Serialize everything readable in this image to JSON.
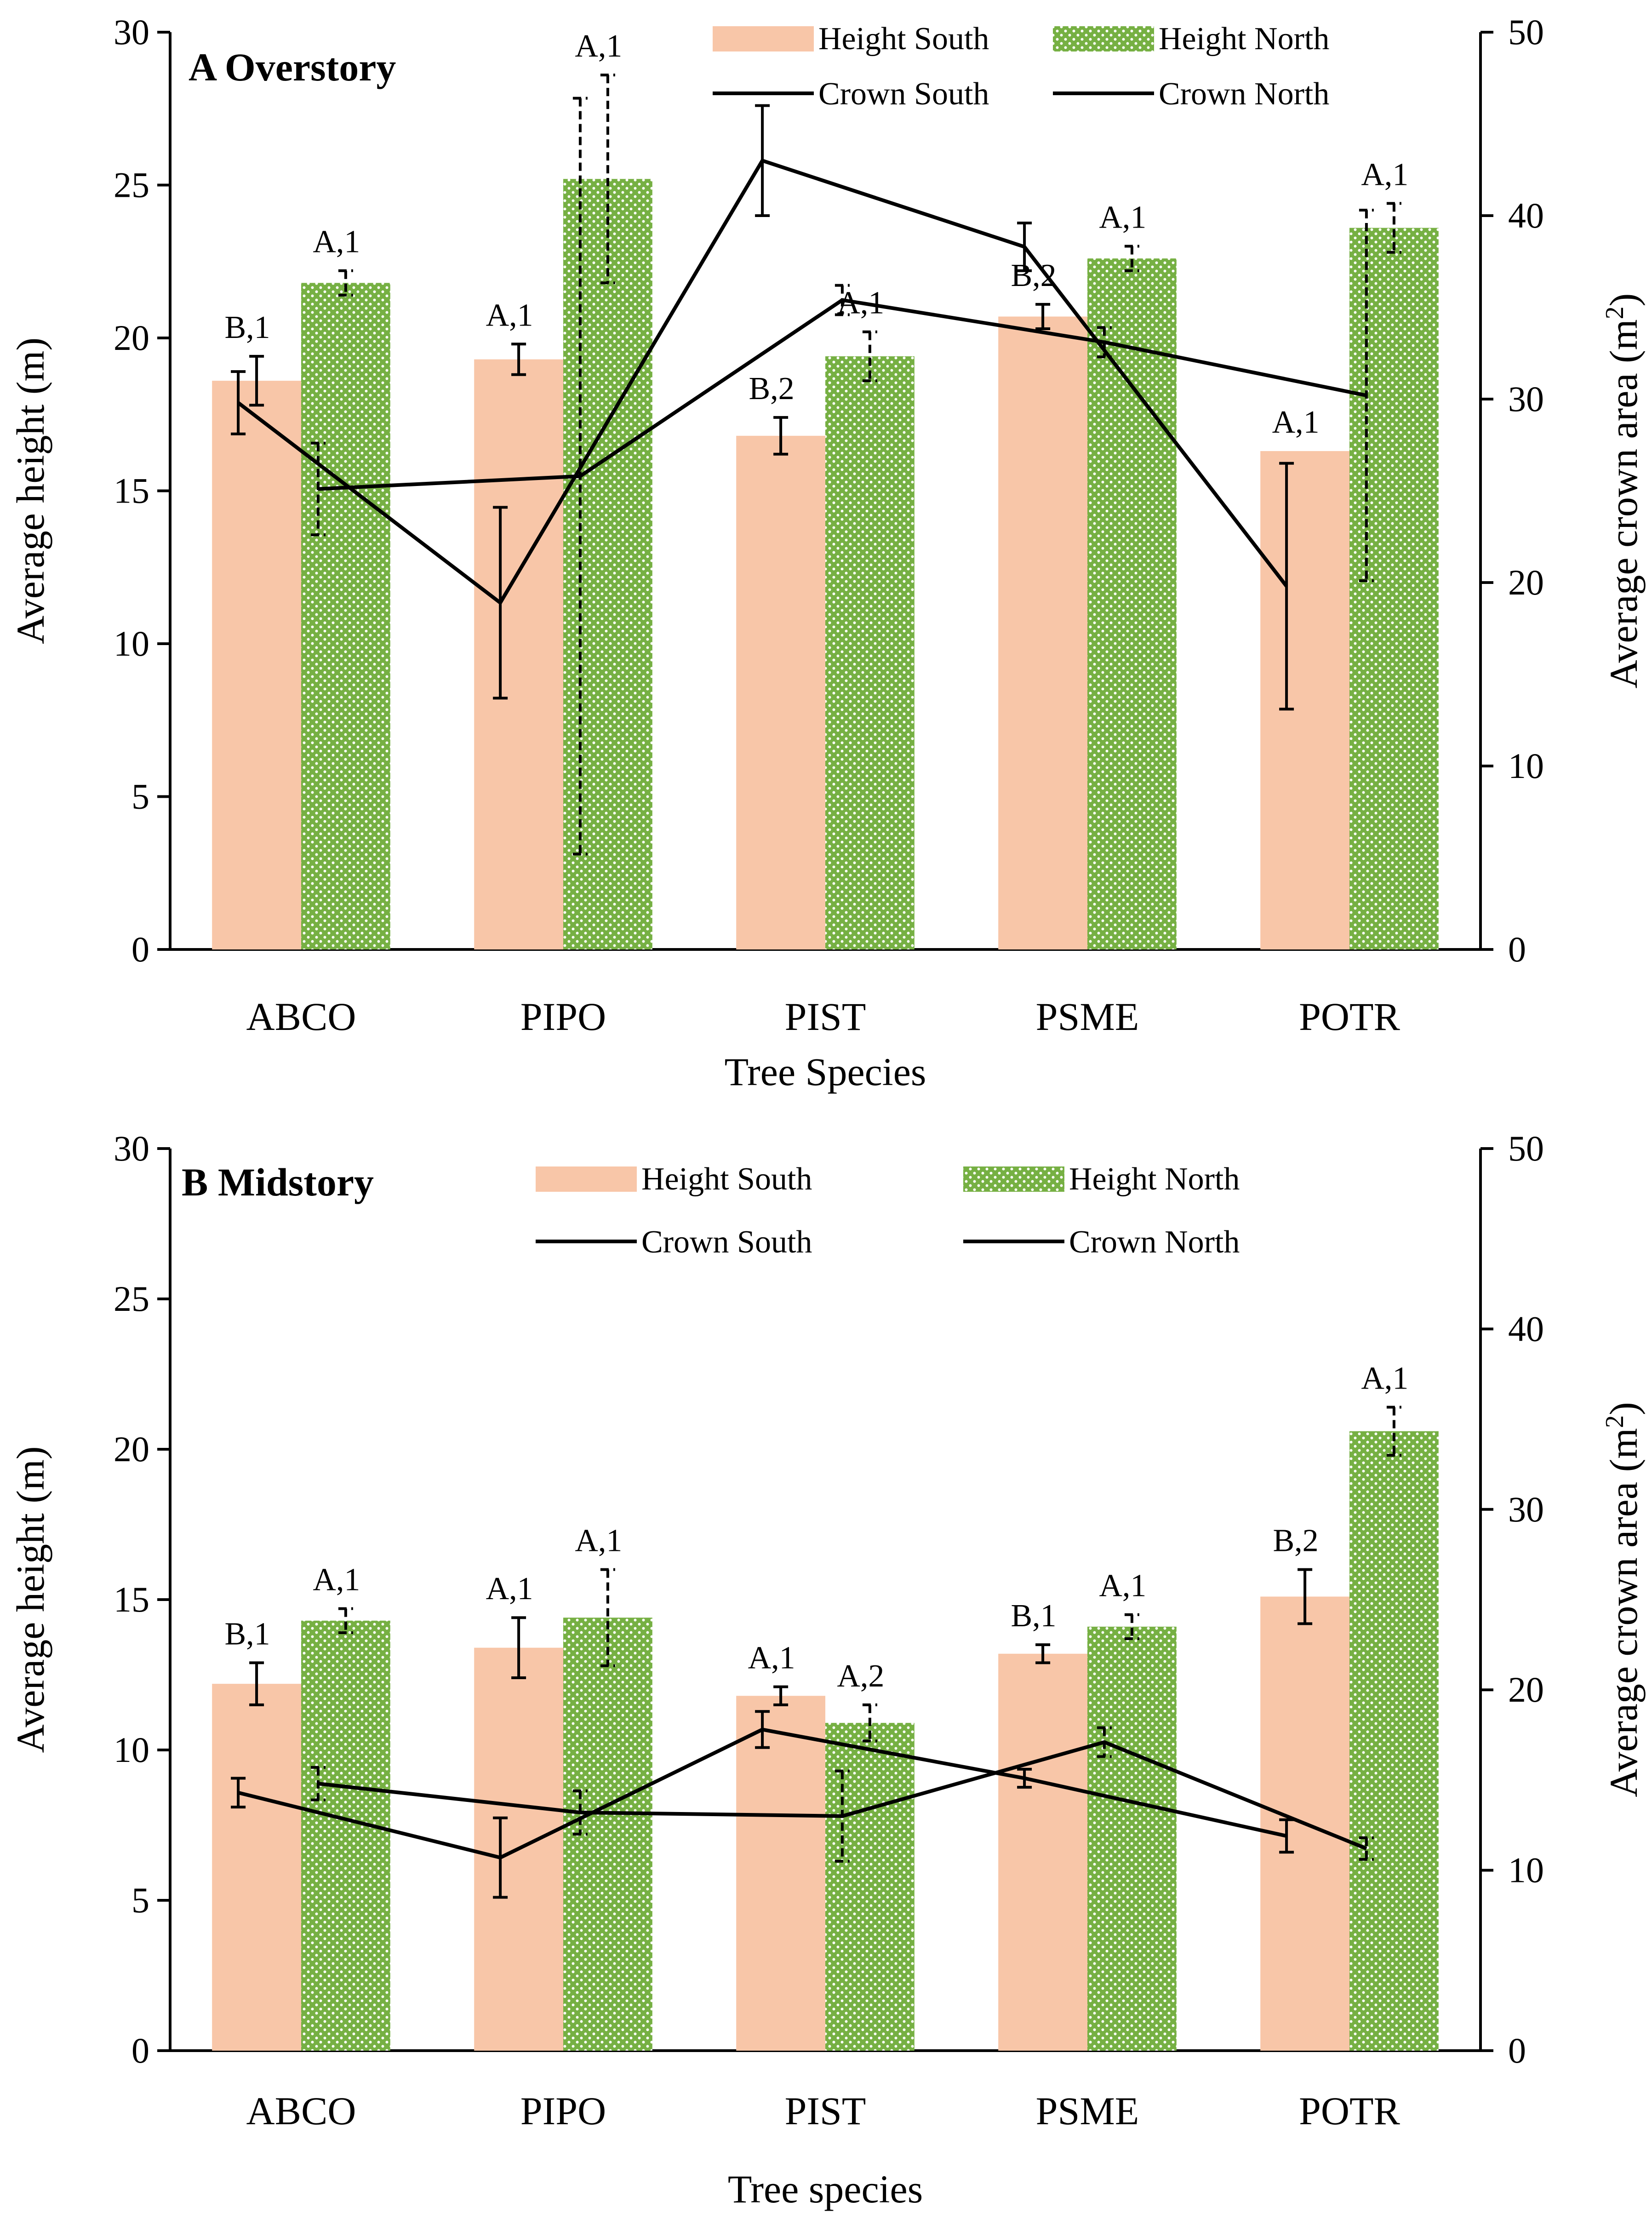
{
  "chart_data": [
    {
      "type": "bar",
      "title": "A Overstory",
      "xlabel": "Tree Species",
      "ylabel": "Average height (m)",
      "y2label": "Average crown area (m",
      "y2label_sup": "2",
      "y2label_close": ")",
      "ylim": [
        0,
        30
      ],
      "y2lim": [
        0,
        50
      ],
      "yticks": [
        "0",
        "5",
        "10",
        "15",
        "20",
        "25",
        "30"
      ],
      "y2ticks": [
        "0",
        "10",
        "20",
        "30",
        "40",
        "50"
      ],
      "categories": [
        "ABCO",
        "PIPO",
        "PIST",
        "PSME",
        "POTR"
      ],
      "legend_position": "top-right",
      "legend_layout": "row",
      "series": [
        {
          "name": "Height South",
          "kind": "bar",
          "color": "#f8c6a8",
          "values": [
            18.6,
            19.3,
            16.8,
            20.7,
            16.3
          ],
          "errors": [
            0.8,
            0.5,
            0.6,
            0.4,
            0.0
          ],
          "labels": [
            "B,1",
            "A,1",
            "B,2",
            "B,2",
            "A,1"
          ]
        },
        {
          "name": "Height North",
          "kind": "bar",
          "color": "#76b043",
          "values": [
            21.8,
            25.2,
            19.4,
            22.6,
            23.6
          ],
          "errors": [
            0.4,
            3.4,
            0.8,
            0.4,
            0.8
          ],
          "labels": [
            "A,1",
            "A,1",
            "A,1",
            "A,1",
            "A,1"
          ]
        },
        {
          "name": "Crown South",
          "kind": "line",
          "values": [
            29.8,
            18.9,
            43.0,
            38.3,
            19.8
          ],
          "errors": [
            1.7,
            5.2,
            3.0,
            1.3,
            6.7
          ]
        },
        {
          "name": "Crown North",
          "kind": "line",
          "values": [
            25.1,
            25.8,
            35.4,
            33.1,
            30.2
          ],
          "errors": [
            2.5,
            20.6,
            0.8,
            0.8,
            10.1
          ]
        }
      ]
    },
    {
      "type": "bar",
      "title": "B Midstory",
      "xlabel": "Tree species",
      "ylabel": "Average height (m)",
      "y2label": "Average crown area (m",
      "y2label_sup": "2",
      "y2label_close": ")",
      "ylim": [
        0,
        30
      ],
      "y2lim": [
        0,
        50
      ],
      "yticks": [
        "0",
        "5",
        "10",
        "15",
        "20",
        "25",
        "30"
      ],
      "y2ticks": [
        "0",
        "10",
        "20",
        "30",
        "40",
        "50"
      ],
      "categories": [
        "ABCO",
        "PIPO",
        "PIST",
        "PSME",
        "POTR"
      ],
      "legend_position": "top-center",
      "legend_layout": "grid",
      "series": [
        {
          "name": "Height South",
          "kind": "bar",
          "color": "#f8c6a8",
          "values": [
            12.2,
            13.4,
            11.8,
            13.2,
            15.1
          ],
          "errors": [
            0.7,
            1.0,
            0.3,
            0.3,
            0.9
          ],
          "labels": [
            "B,1",
            "A,1",
            "A,1",
            "B,1",
            "B,2"
          ]
        },
        {
          "name": "Height North",
          "kind": "bar",
          "color": "#76b043",
          "values": [
            14.3,
            14.4,
            10.9,
            14.1,
            20.6
          ],
          "errors": [
            0.4,
            1.6,
            0.6,
            0.4,
            0.8
          ],
          "labels": [
            "A,1",
            "A,1",
            "A,2",
            "A,1",
            "A,1"
          ]
        },
        {
          "name": "Crown South",
          "kind": "line",
          "values": [
            14.3,
            10.7,
            17.8,
            15.1,
            11.9
          ],
          "errors": [
            0.8,
            2.2,
            1.0,
            0.5,
            0.9
          ]
        },
        {
          "name": "Crown North",
          "kind": "line",
          "values": [
            14.8,
            13.2,
            13.0,
            17.1,
            11.2
          ],
          "errors": [
            0.9,
            1.2,
            2.5,
            0.8,
            0.6
          ]
        }
      ]
    }
  ]
}
